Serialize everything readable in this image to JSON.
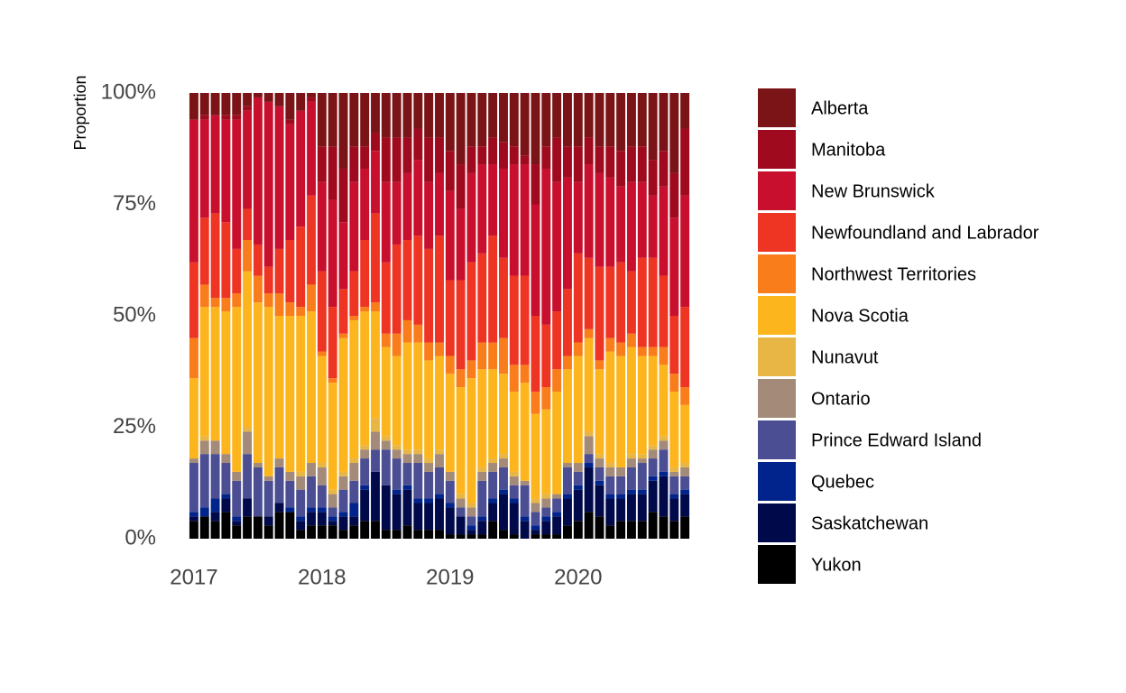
{
  "chart_data": {
    "type": "stacked_bar",
    "y_label": "Proportion",
    "categories": [
      null,
      null,
      null,
      null,
      null,
      null,
      null,
      null,
      null,
      null,
      null,
      null,
      null,
      null,
      null,
      null,
      null,
      null,
      null,
      null,
      null,
      null,
      null,
      null,
      null,
      null,
      null,
      null,
      null,
      null,
      null,
      null,
      null,
      null,
      null,
      null,
      null,
      null,
      null,
      null,
      null,
      null,
      null,
      null,
      null,
      null,
      null
    ],
    "xlim": [
      2016.958333,
      2020.875
    ],
    "xticks": [
      2017,
      2018,
      2019,
      2020
    ],
    "ylim": [
      0,
      100
    ],
    "yticks": [
      {
        "value": 0,
        "label": "0%"
      },
      {
        "value": 25,
        "label": "25%"
      },
      {
        "value": 50,
        "label": "50%"
      },
      {
        "value": 75,
        "label": "75%"
      },
      {
        "value": 100,
        "label": "100%"
      }
    ],
    "series": [
      {
        "name": "Alberta",
        "color": "#7b1416",
        "values": [
          6,
          5,
          5,
          5,
          5,
          3,
          1,
          2,
          3,
          6,
          4,
          1,
          12,
          12,
          17,
          12,
          12,
          9,
          10,
          10,
          10,
          8,
          10,
          10,
          13,
          16,
          12,
          12,
          10,
          11,
          12,
          14,
          16,
          12,
          10,
          12,
          12,
          10,
          12,
          12,
          13,
          12,
          12,
          15,
          13,
          18,
          8
        ]
      },
      {
        "name": "Manitoba",
        "color": "#a00a1e",
        "values": [
          0,
          1,
          0,
          1,
          1,
          1,
          0,
          0,
          0,
          1,
          0,
          1,
          8,
          12,
          12,
          8,
          5,
          4,
          10,
          10,
          8,
          7,
          10,
          8,
          9,
          10,
          6,
          4,
          6,
          6,
          4,
          2,
          9,
          5,
          10,
          7,
          8,
          6,
          6,
          7,
          8,
          8,
          8,
          8,
          8,
          10,
          15
        ]
      },
      {
        "name": "New Brunswick",
        "color": "#c8102e",
        "values": [
          32,
          22,
          22,
          23,
          29,
          22,
          33,
          37,
          32,
          26,
          26,
          21,
          20,
          24,
          15,
          20,
          16,
          14,
          18,
          14,
          15,
          17,
          15,
          14,
          20,
          16,
          20,
          20,
          16,
          20,
          25,
          25,
          25,
          35,
          29,
          25,
          16,
          21,
          21,
          20,
          17,
          20,
          17,
          14,
          20,
          22,
          25
        ]
      },
      {
        "name": "Newfoundland and Labrador",
        "color": "#ee3524",
        "values": [
          17,
          15,
          19,
          17,
          10,
          7,
          7,
          6,
          10,
          14,
          18,
          20,
          18,
          16,
          10,
          10,
          15,
          20,
          16,
          20,
          18,
          20,
          21,
          24,
          17,
          20,
          22,
          20,
          24,
          18,
          20,
          20,
          17,
          14,
          13,
          15,
          20,
          16,
          21,
          16,
          18,
          14,
          20,
          20,
          16,
          13,
          18
        ]
      },
      {
        "name": "Northwest Territories",
        "color": "#f97d1a",
        "values": [
          9,
          5,
          2,
          3,
          3,
          7,
          6,
          3,
          5,
          3,
          2,
          6,
          1,
          1,
          1,
          1,
          1,
          2,
          3,
          5,
          5,
          4,
          4,
          3,
          4,
          4,
          4,
          6,
          6,
          8,
          6,
          4,
          5,
          5,
          5,
          3,
          3,
          2,
          2,
          3,
          3,
          3,
          2,
          2,
          4,
          4,
          4
        ]
      },
      {
        "name": "Nova Scotia",
        "color": "#fdb51e",
        "values": [
          18,
          29,
          30,
          32,
          37,
          35,
          36,
          38,
          32,
          35,
          35,
          34,
          24,
          24,
          30,
          31,
          30,
          24,
          20,
          20,
          24,
          24,
          22,
          21,
          22,
          24,
          28,
          22,
          20,
          18,
          18,
          22,
          19,
          19,
          23,
          21,
          24,
          21,
          19,
          25,
          25,
          24,
          22,
          20,
          16,
          17,
          13
        ]
      },
      {
        "name": "Nunavut",
        "color": "#e8b645",
        "values": [
          0,
          1,
          0,
          0,
          0,
          1,
          0,
          0,
          0,
          0,
          1,
          0,
          1,
          1,
          1,
          1,
          1,
          3,
          1,
          1,
          1,
          1,
          1,
          1,
          0,
          1,
          1,
          1,
          1,
          1,
          1,
          0,
          1,
          1,
          0,
          0,
          0,
          1,
          1,
          1,
          0,
          1,
          1,
          1,
          1,
          1,
          1
        ]
      },
      {
        "name": "Ontario",
        "color": "#a48a78",
        "values": [
          1,
          3,
          3,
          2,
          2,
          5,
          1,
          1,
          2,
          2,
          3,
          3,
          4,
          3,
          3,
          4,
          2,
          4,
          2,
          2,
          2,
          2,
          2,
          3,
          2,
          2,
          2,
          2,
          2,
          2,
          2,
          1,
          2,
          2,
          1,
          1,
          2,
          4,
          2,
          2,
          2,
          2,
          1,
          2,
          2,
          1,
          2
        ]
      },
      {
        "name": "Prince Edward Island",
        "color": "#4b4e93",
        "values": [
          11,
          12,
          10,
          7,
          8,
          10,
          11,
          8,
          8,
          6,
          6,
          7,
          5,
          2,
          5,
          5,
          6,
          5,
          8,
          7,
          5,
          8,
          6,
          6,
          5,
          2,
          2,
          8,
          6,
          5,
          3,
          7,
          3,
          2,
          3,
          6,
          3,
          2,
          3,
          4,
          4,
          5,
          6,
          4,
          5,
          4,
          3
        ]
      },
      {
        "name": "Quebec",
        "color": "#00248b",
        "values": [
          1,
          2,
          3,
          1,
          1,
          0,
          0,
          0,
          0,
          1,
          1,
          1,
          1,
          1,
          1,
          3,
          1,
          0,
          0,
          1,
          1,
          1,
          1,
          1,
          1,
          0,
          1,
          1,
          1,
          1,
          1,
          1,
          1,
          1,
          1,
          1,
          1,
          1,
          1,
          1,
          1,
          1,
          1,
          1,
          1,
          1,
          1
        ]
      },
      {
        "name": "Saskatchewan",
        "color": "#000a4b",
        "values": [
          1,
          0,
          2,
          3,
          1,
          4,
          0,
          2,
          2,
          0,
          2,
          3,
          3,
          1,
          3,
          2,
          7,
          11,
          10,
          8,
          8,
          6,
          6,
          7,
          6,
          4,
          1,
          3,
          4,
          8,
          7,
          4,
          1,
          3,
          4,
          6,
          7,
          10,
          7,
          6,
          5,
          6,
          6,
          7,
          9,
          5,
          5
        ]
      },
      {
        "name": "Yukon",
        "color": "#000000",
        "values": [
          4,
          5,
          4,
          6,
          3,
          5,
          5,
          3,
          6,
          6,
          2,
          3,
          3,
          3,
          2,
          3,
          4,
          4,
          2,
          2,
          3,
          2,
          2,
          2,
          1,
          1,
          1,
          1,
          4,
          2,
          1,
          0,
          1,
          1,
          1,
          3,
          4,
          6,
          5,
          3,
          4,
          4,
          4,
          6,
          5,
          4,
          5
        ]
      }
    ]
  }
}
